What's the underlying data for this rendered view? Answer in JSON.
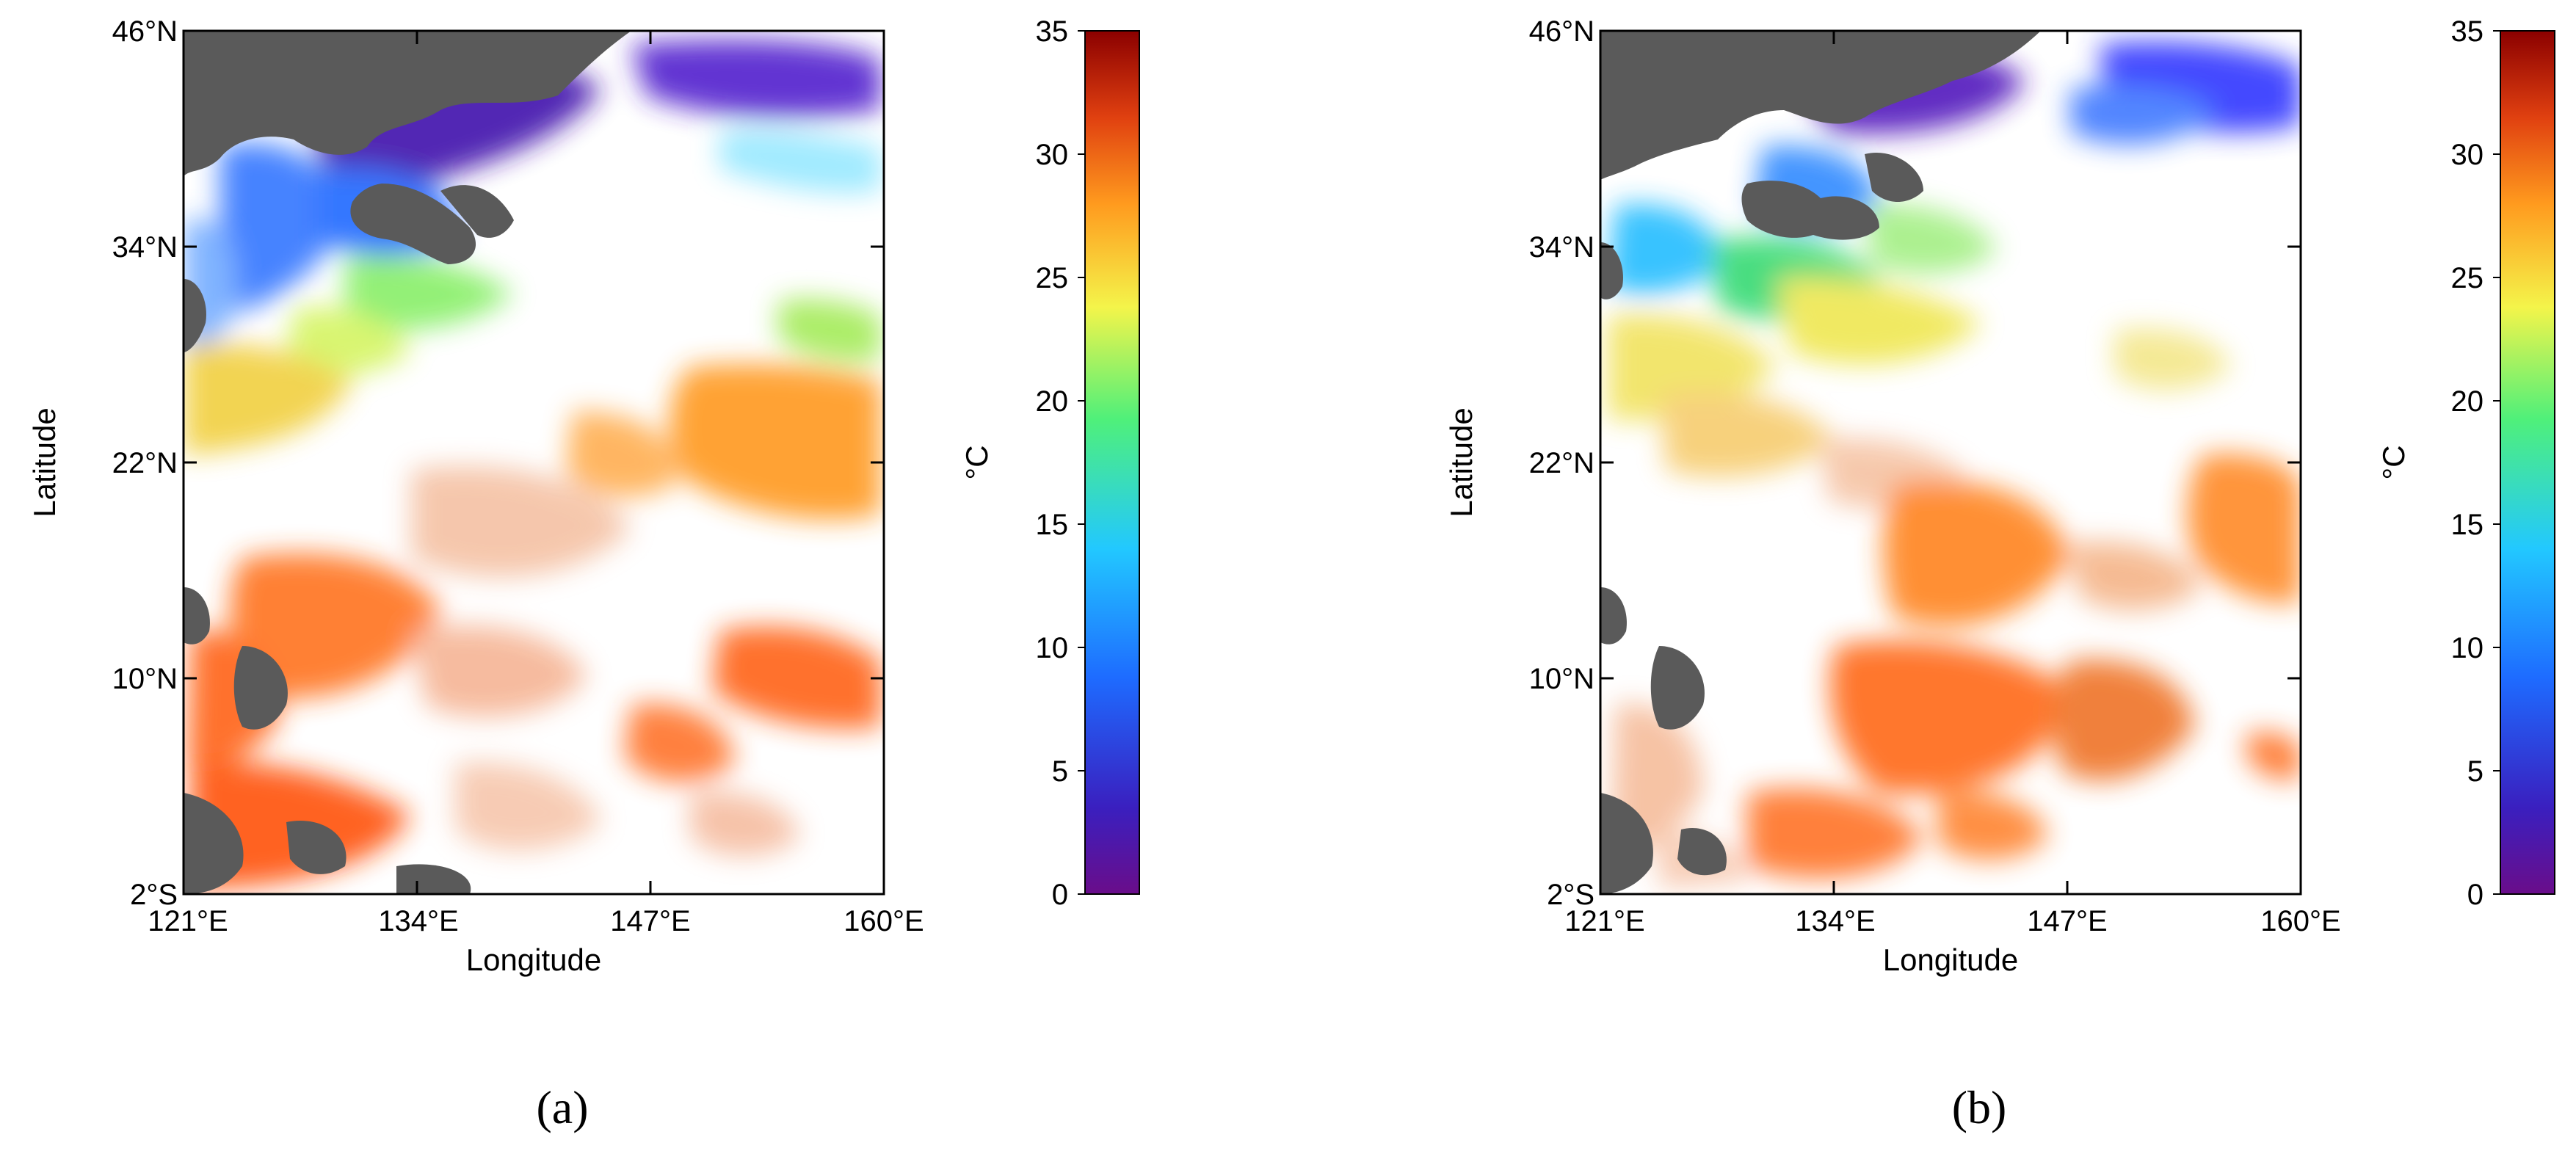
{
  "figure": {
    "lat_ticks": [
      "46°N",
      "34°N",
      "22°N",
      "10°N",
      "2°S"
    ],
    "lon_ticks": [
      "121°E",
      "134°E",
      "147°E",
      "160°E"
    ],
    "xlabel": "Longitude",
    "ylabel": "Latitude",
    "colorbar": {
      "unit": "°C",
      "ticks": [
        "0",
        "5",
        "10",
        "15",
        "20",
        "25",
        "30",
        "35"
      ],
      "min": 0,
      "max": 35,
      "colors": [
        "#6a0d8a",
        "#3a1fbf",
        "#1e6bff",
        "#22c8ff",
        "#4ff07a",
        "#f4f44a",
        "#ff9a1e",
        "#e04010",
        "#8b0000"
      ]
    },
    "land_color": "#5a5a5a",
    "panels": [
      {
        "label": "(a)"
      },
      {
        "label": "(b)"
      }
    ]
  }
}
